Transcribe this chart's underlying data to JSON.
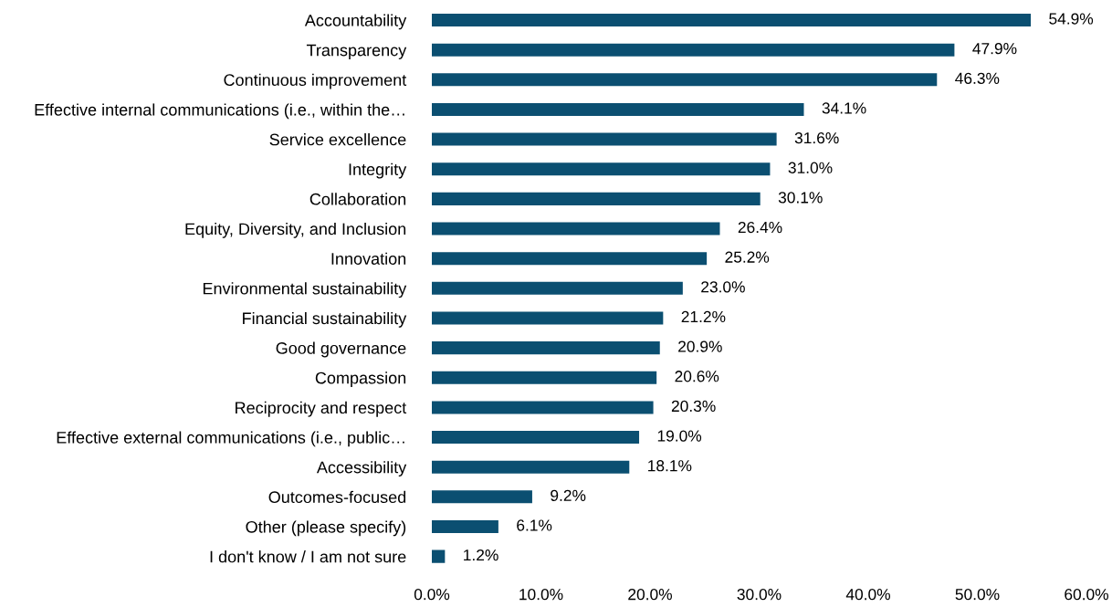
{
  "chart_data": {
    "type": "bar",
    "orientation": "horizontal",
    "categories": [
      "Accountability",
      "Transparency",
      "Continuous improvement",
      "Effective internal communications (i.e., within the…",
      "Service excellence",
      "Integrity",
      "Collaboration",
      "Equity, Diversity, and Inclusion",
      "Innovation",
      "Environmental sustainability",
      "Financial sustainability",
      "Good governance",
      "Compassion",
      "Reciprocity and respect",
      "Effective external communications (i.e., public…",
      "Accessibility",
      "Outcomes-focused",
      "Other (please specify)",
      "I don't know / I am not sure"
    ],
    "values": [
      54.9,
      47.9,
      46.3,
      34.1,
      31.6,
      31.0,
      30.1,
      26.4,
      25.2,
      23.0,
      21.2,
      20.9,
      20.6,
      20.3,
      19.0,
      18.1,
      9.2,
      6.1,
      1.2
    ],
    "value_labels": [
      "54.9%",
      "47.9%",
      "46.3%",
      "34.1%",
      "31.6%",
      "31.0%",
      "30.1%",
      "26.4%",
      "25.2%",
      "23.0%",
      "21.2%",
      "20.9%",
      "20.6%",
      "20.3%",
      "19.0%",
      "18.1%",
      "9.2%",
      "6.1%",
      "1.2%"
    ],
    "color": "#0b4f71",
    "xlim": [
      0,
      60
    ],
    "xticks": [
      {
        "value": 0,
        "label": "0.0%"
      },
      {
        "value": 10,
        "label": "10.0%"
      },
      {
        "value": 20,
        "label": "20.0%"
      },
      {
        "value": 30,
        "label": "30.0%"
      },
      {
        "value": 40,
        "label": "40.0%"
      },
      {
        "value": 50,
        "label": "50.0%"
      },
      {
        "value": 60,
        "label": "60.0%"
      }
    ],
    "grid": false,
    "legend": false
  }
}
